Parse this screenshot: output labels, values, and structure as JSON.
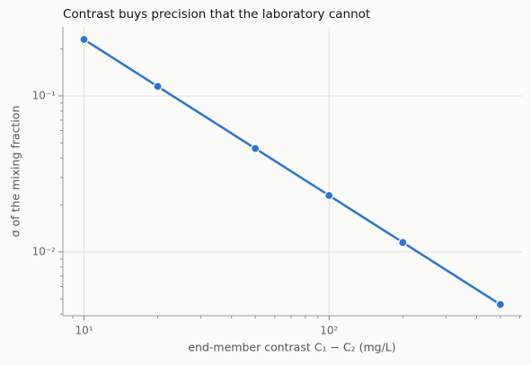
{
  "chart_data": {
    "type": "line",
    "title": "Contrast buys precision that the laboratory cannot",
    "xlabel": "end-member contrast  C₁ − C₂  (mg/L)",
    "ylabel": "σ of the mixing fraction",
    "x": [
      10,
      20,
      50,
      100,
      200,
      500
    ],
    "series": [
      {
        "name": "σ",
        "color": "#2e75cc",
        "values": [
          0.23,
          0.115,
          0.046,
          0.023,
          0.0115,
          0.0046
        ]
      }
    ],
    "xscale": "log",
    "yscale": "log",
    "xlim": [
      8.2,
      613
    ],
    "ylim": [
      0.0039,
      0.277
    ],
    "xticks": [
      {
        "value": 10,
        "label": "10¹"
      },
      {
        "value": 100,
        "label": "10²"
      }
    ],
    "yticks": [
      {
        "value": 0.01,
        "label": "10⁻²"
      },
      {
        "value": 0.1,
        "label": "10⁻¹"
      }
    ],
    "xminorticks": [
      9,
      20,
      30,
      40,
      50,
      60,
      70,
      80,
      90,
      200,
      300,
      400,
      500,
      600
    ],
    "yminorticks": [
      0.004,
      0.005,
      0.006,
      0.007,
      0.008,
      0.009,
      0.02,
      0.03,
      0.04,
      0.05,
      0.06,
      0.07,
      0.08,
      0.09,
      0.2
    ],
    "grid": true
  }
}
